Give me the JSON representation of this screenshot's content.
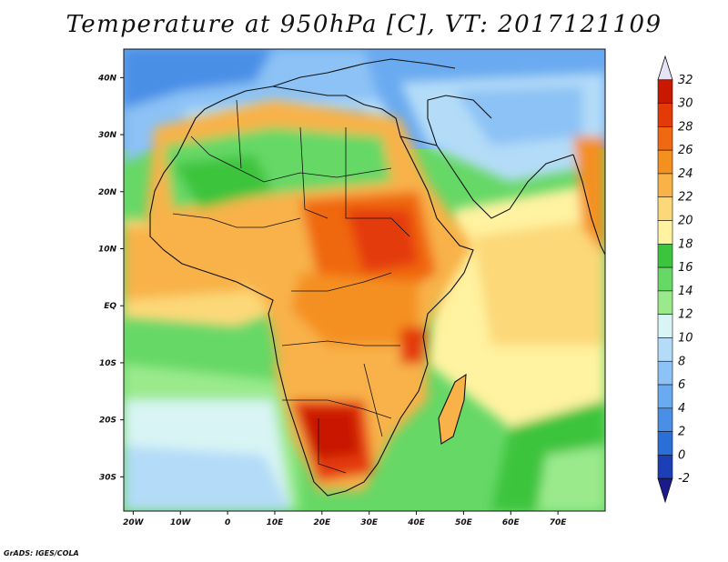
{
  "title": "Temperature at 950hPa [C], VT: 2017121109",
  "credit": "GrADS: IGES/COLA",
  "map": {
    "lon_range": [
      -22,
      80
    ],
    "lat_range": [
      -36,
      45
    ],
    "lon_ticks": [
      {
        "value": -20,
        "label": "20W"
      },
      {
        "value": -10,
        "label": "10W"
      },
      {
        "value": 0,
        "label": "0"
      },
      {
        "value": 10,
        "label": "10E"
      },
      {
        "value": 20,
        "label": "20E"
      },
      {
        "value": 30,
        "label": "30E"
      },
      {
        "value": 40,
        "label": "40E"
      },
      {
        "value": 50,
        "label": "50E"
      },
      {
        "value": 60,
        "label": "60E"
      },
      {
        "value": 70,
        "label": "70E"
      }
    ],
    "lat_ticks": [
      {
        "value": 40,
        "label": "40N"
      },
      {
        "value": 30,
        "label": "30N"
      },
      {
        "value": 20,
        "label": "20N"
      },
      {
        "value": 10,
        "label": "10N"
      },
      {
        "value": 0,
        "label": "EQ"
      },
      {
        "value": -10,
        "label": "10S"
      },
      {
        "value": -20,
        "label": "20S"
      },
      {
        "value": -30,
        "label": "30S"
      }
    ]
  },
  "colorbar": {
    "levels": [
      "-2",
      "0",
      "2",
      "4",
      "6",
      "8",
      "10",
      "12",
      "14",
      "16",
      "18",
      "20",
      "22",
      "24",
      "26",
      "28",
      "30",
      "32"
    ],
    "colors": [
      "#1a1a8c",
      "#1c3fb8",
      "#2a6fd8",
      "#4a8fe6",
      "#6aaaf0",
      "#8cc2f5",
      "#b4dcf8",
      "#d8f4f4",
      "#9aea8c",
      "#66d866",
      "#3cc43c",
      "#fff2a0",
      "#fcd878",
      "#f8b248",
      "#f49020",
      "#f06810",
      "#e43a08",
      "#c81800",
      "#e8e4f8"
    ]
  }
}
